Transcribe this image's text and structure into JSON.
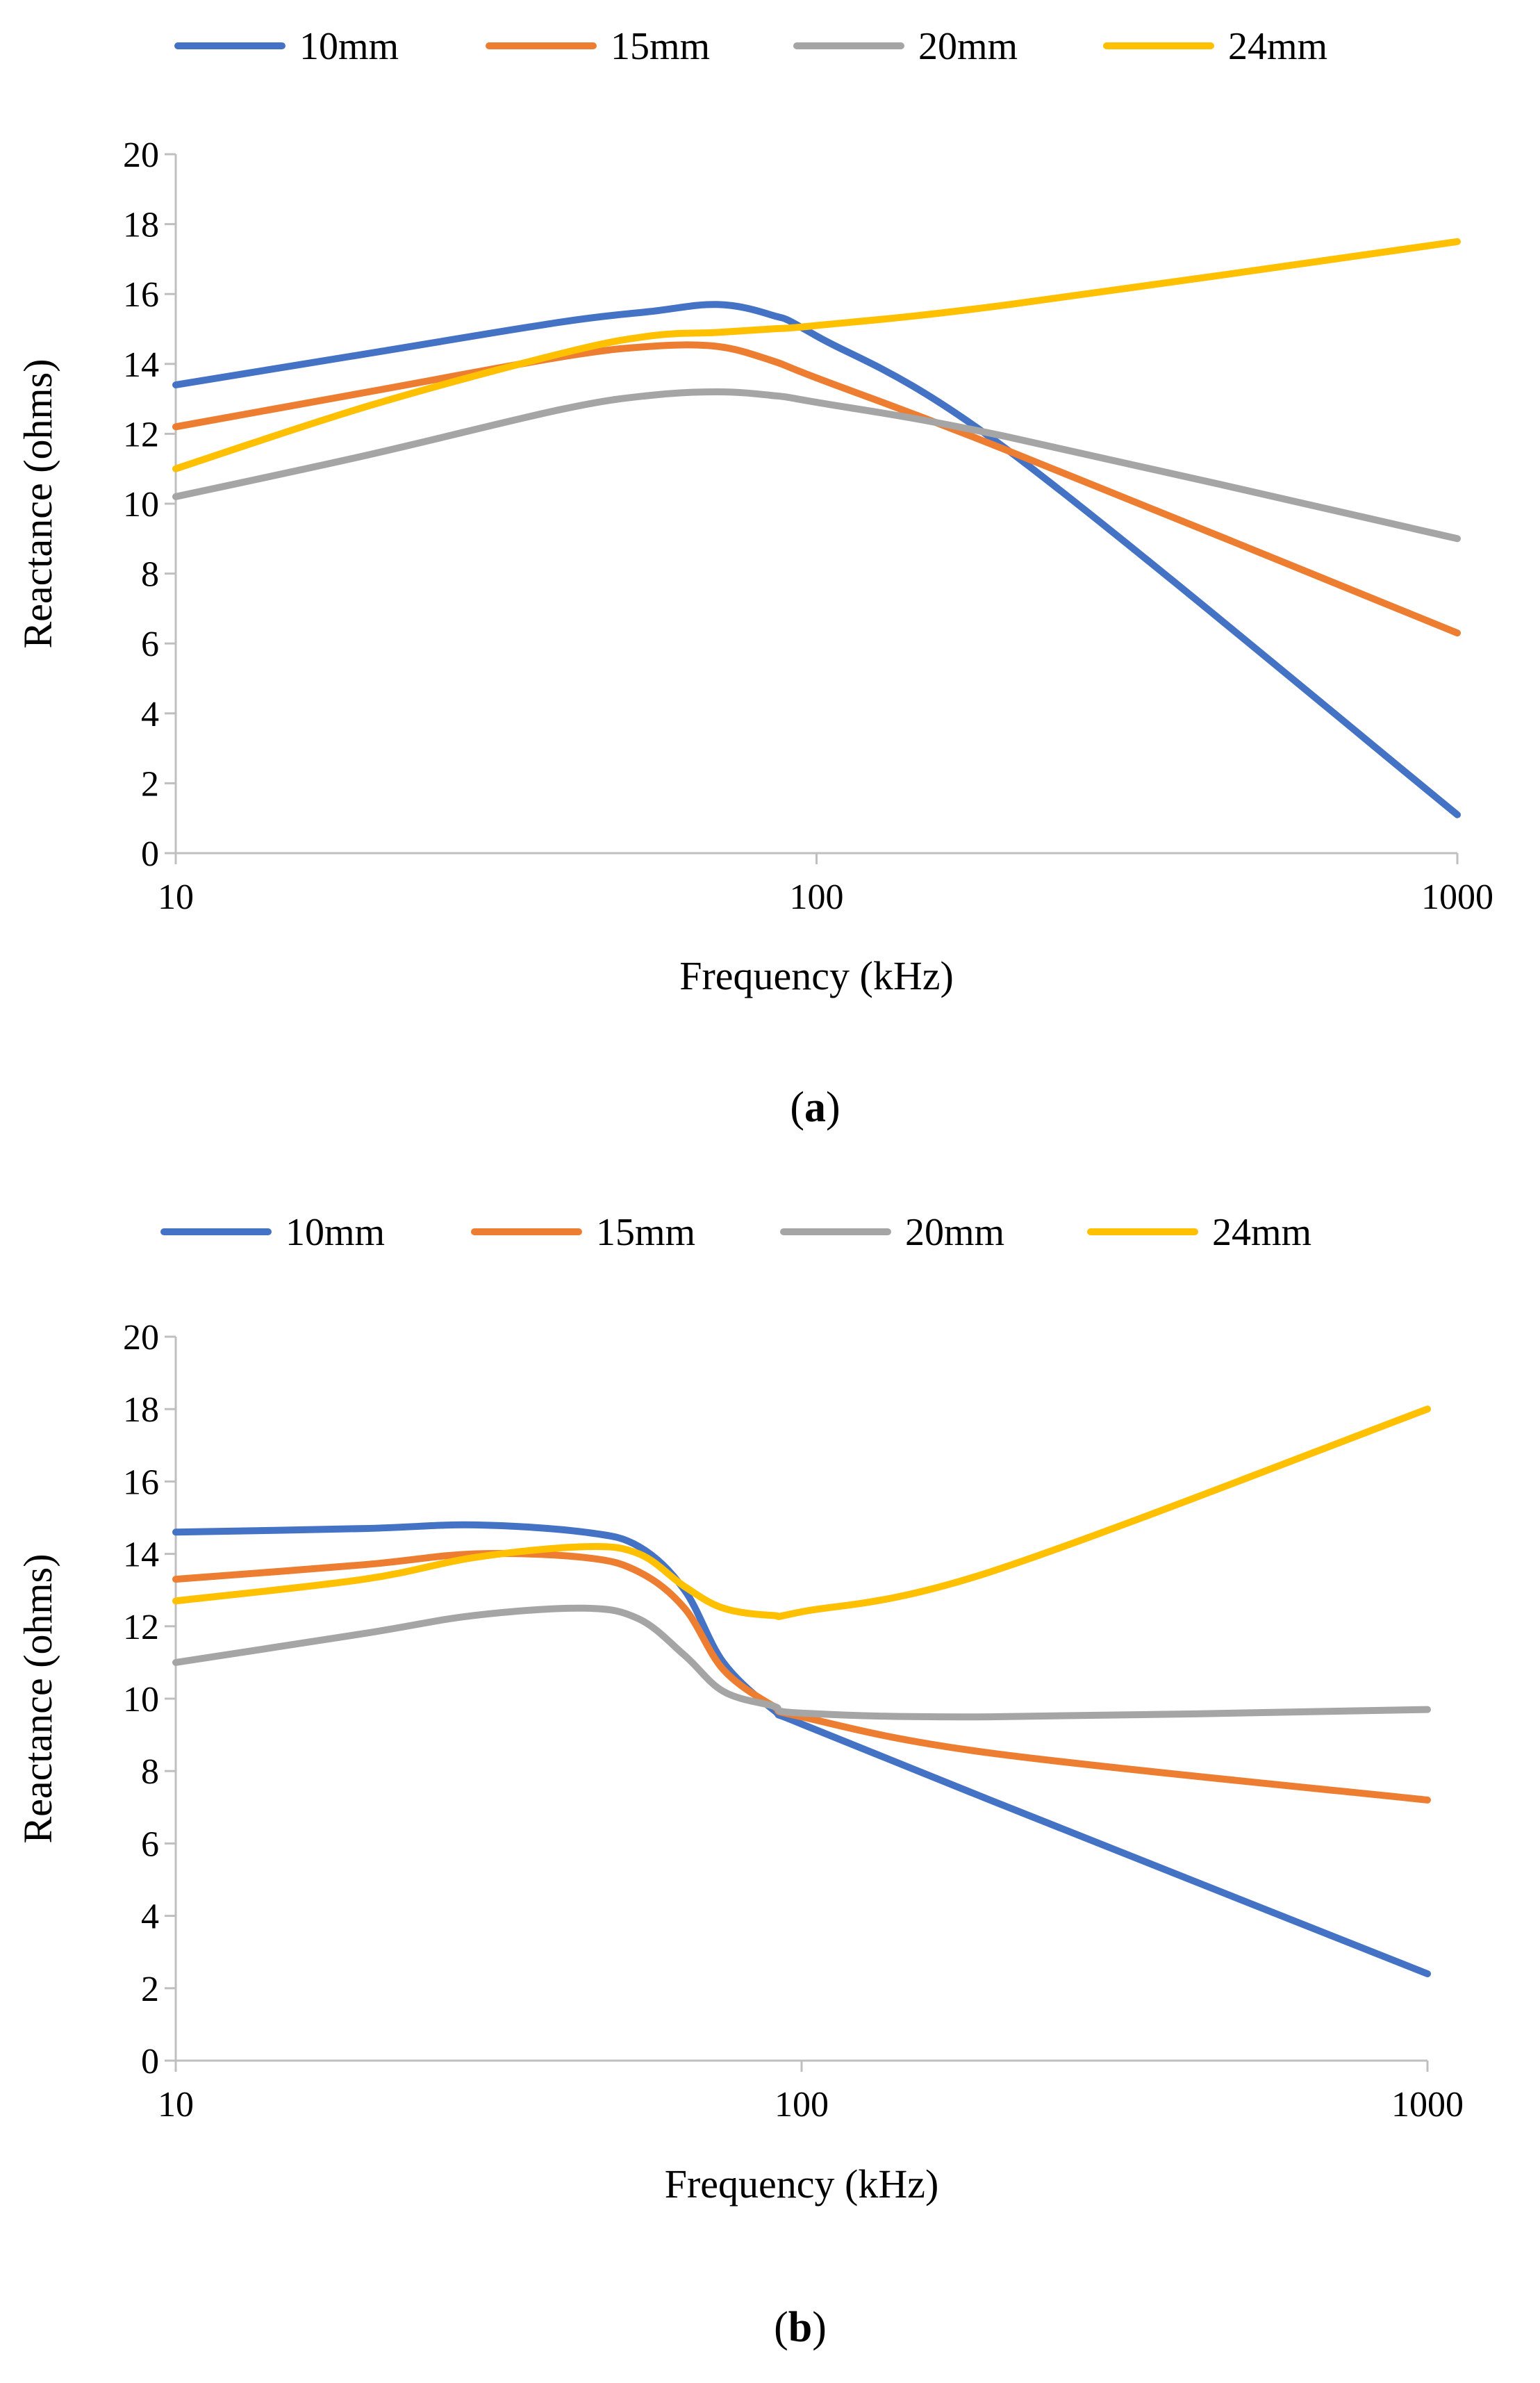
{
  "figure": {
    "panels": [
      {
        "caption_open": "(",
        "caption_letter": "a",
        "caption_close": ")"
      },
      {
        "caption_open": "(",
        "caption_letter": "b",
        "caption_close": ")"
      }
    ]
  },
  "chart_data": [
    {
      "type": "line",
      "panel": "a",
      "xscale": "log",
      "xlabel": "Frequency (kHz)",
      "ylabel": "Reactance (ohms)",
      "xlim": [
        10,
        1000
      ],
      "ylim": [
        0,
        20
      ],
      "xticks": [
        10,
        100,
        1000
      ],
      "xtick_labels": [
        "10",
        "100",
        "1000"
      ],
      "yticks": [
        0,
        2,
        4,
        6,
        8,
        10,
        12,
        14,
        16,
        18,
        20
      ],
      "ytick_labels": [
        "0",
        "2",
        "4",
        "6",
        "8",
        "10",
        "12",
        "14",
        "16",
        "18",
        "20"
      ],
      "legend_position": "top",
      "series": [
        {
          "name": "10mm",
          "color": "#4472C4",
          "x": [
            10,
            20,
            40,
            55,
            70,
            85,
            100,
            200,
            1000
          ],
          "y": [
            13.4,
            14.3,
            15.2,
            15.5,
            15.7,
            15.4,
            14.8,
            11.5,
            1.1
          ]
        },
        {
          "name": "15mm",
          "color": "#ED7D31",
          "x": [
            10,
            20,
            40,
            55,
            70,
            85,
            100,
            200,
            1000
          ],
          "y": [
            12.2,
            13.2,
            14.2,
            14.5,
            14.5,
            14.1,
            13.6,
            11.5,
            6.3
          ]
        },
        {
          "name": "20mm",
          "color": "#A5A5A5",
          "x": [
            10,
            20,
            40,
            55,
            70,
            85,
            100,
            200,
            1000
          ],
          "y": [
            10.2,
            11.4,
            12.7,
            13.1,
            13.2,
            13.1,
            12.9,
            11.9,
            9.0
          ]
        },
        {
          "name": "24mm",
          "color": "#FFC000",
          "x": [
            10,
            20,
            40,
            55,
            70,
            85,
            100,
            200,
            1000
          ],
          "y": [
            11.0,
            12.8,
            14.3,
            14.8,
            14.9,
            15.0,
            15.1,
            15.7,
            17.5
          ]
        }
      ]
    },
    {
      "type": "line",
      "panel": "b",
      "xscale": "log",
      "xlabel": "Frequency (kHz)",
      "ylabel": "Reactance (ohms)",
      "xlim": [
        10,
        1000
      ],
      "ylim": [
        0,
        20
      ],
      "xticks": [
        10,
        100,
        1000
      ],
      "xtick_labels": [
        "10",
        "100",
        "1000"
      ],
      "yticks": [
        0,
        2,
        4,
        6,
        8,
        10,
        12,
        14,
        16,
        18,
        20
      ],
      "ytick_labels": [
        "0",
        "2",
        "4",
        "6",
        "8",
        "10",
        "12",
        "14",
        "16",
        "18",
        "20"
      ],
      "legend_position": "top",
      "series": [
        {
          "name": "10mm",
          "color": "#4472C4",
          "x": [
            10,
            20,
            30,
            45,
            55,
            65,
            75,
            90,
            100,
            200,
            1000
          ],
          "y": [
            14.6,
            14.7,
            14.8,
            14.6,
            14.2,
            13.0,
            11.0,
            9.7,
            9.3,
            7.2,
            2.4
          ]
        },
        {
          "name": "15mm",
          "color": "#ED7D31",
          "x": [
            10,
            20,
            30,
            45,
            55,
            65,
            75,
            90,
            100,
            200,
            1000
          ],
          "y": [
            13.3,
            13.7,
            14.0,
            13.9,
            13.5,
            12.5,
            10.8,
            9.8,
            9.5,
            8.5,
            7.2
          ]
        },
        {
          "name": "20mm",
          "color": "#A5A5A5",
          "x": [
            10,
            20,
            30,
            45,
            55,
            65,
            75,
            90,
            100,
            200,
            1000
          ],
          "y": [
            11.0,
            11.8,
            12.3,
            12.5,
            12.2,
            11.2,
            10.2,
            9.8,
            9.6,
            9.5,
            9.7
          ]
        },
        {
          "name": "24mm",
          "color": "#FFC000",
          "x": [
            10,
            20,
            30,
            45,
            55,
            65,
            75,
            90,
            100,
            200,
            1000
          ],
          "y": [
            12.7,
            13.3,
            13.9,
            14.2,
            14.0,
            13.1,
            12.5,
            12.3,
            12.4,
            13.5,
            18.0
          ]
        }
      ]
    }
  ]
}
